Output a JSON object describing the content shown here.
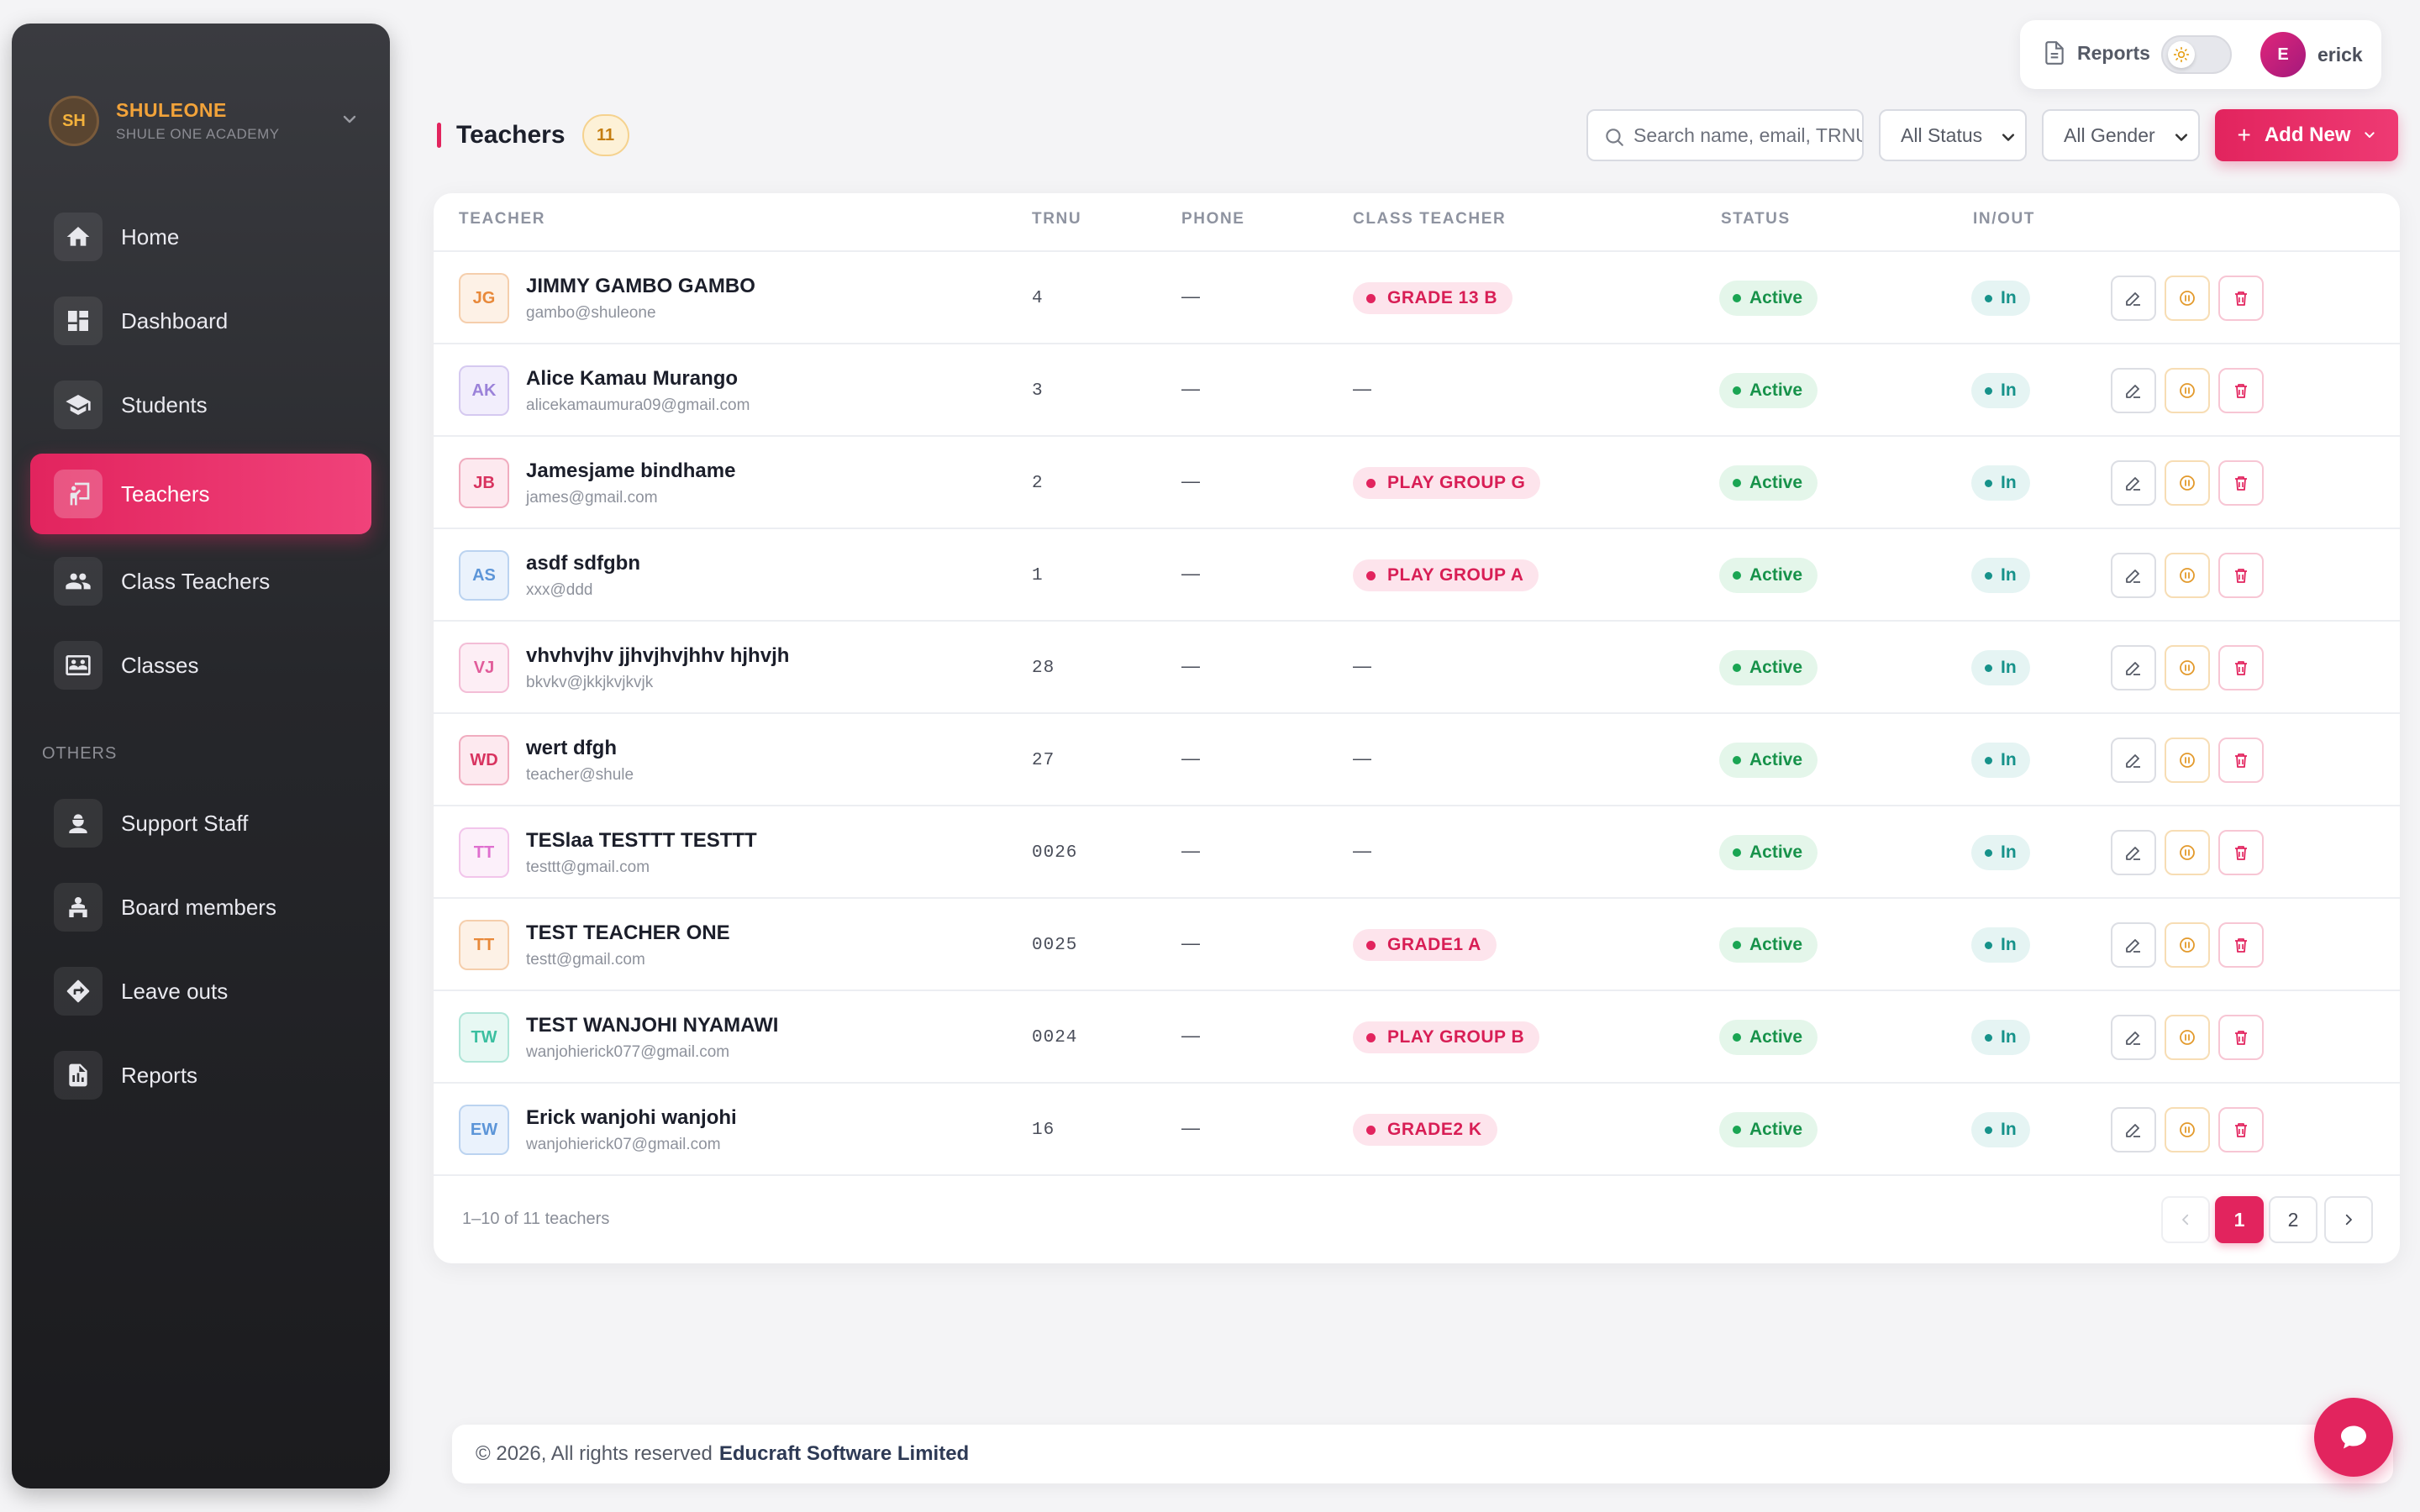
{
  "brand": {
    "initials": "SH",
    "name": "SHULEONE",
    "subtitle": "SHULE ONE ACADEMY"
  },
  "sidebar": {
    "items": [
      {
        "label": "Home",
        "icon": "home-icon"
      },
      {
        "label": "Dashboard",
        "icon": "dashboard-icon"
      },
      {
        "label": "Students",
        "icon": "graduation-cap-icon"
      },
      {
        "label": "Teachers",
        "icon": "teacher-board-icon",
        "active": true
      },
      {
        "label": "Class Teachers",
        "icon": "people-icon"
      },
      {
        "label": "Classes",
        "icon": "classroom-icon"
      }
    ],
    "section_label": "OTHERS",
    "others": [
      {
        "label": "Support Staff",
        "icon": "staff-icon"
      },
      {
        "label": "Board members",
        "icon": "board-member-icon"
      },
      {
        "label": "Leave outs",
        "icon": "directions-icon"
      },
      {
        "label": "Reports",
        "icon": "report-document-icon"
      }
    ]
  },
  "topbar": {
    "reports_label": "Reports",
    "theme": "light",
    "user_initial": "E",
    "user_name": "erick"
  },
  "page": {
    "title": "Teachers",
    "count": "11",
    "search_placeholder": "Search name, email, TRNU",
    "status_filter": "All Status",
    "gender_filter": "All Gender",
    "add_button": "Add New"
  },
  "table": {
    "headers": [
      "TEACHER",
      "TRNU",
      "PHONE",
      "CLASS TEACHER",
      "STATUS",
      "IN/OUT"
    ],
    "rows": [
      {
        "initials": "JG",
        "name": "JIMMY GAMBO GAMBO",
        "email": "gambo@shuleone",
        "trnu": "4",
        "phone": "—",
        "class": "GRADE 13 B",
        "status": "Active",
        "inout": "In",
        "color": "#e8893a",
        "bg": "#fdf1e6"
      },
      {
        "initials": "AK",
        "name": "Alice Kamau Murango",
        "email": "alicekamaumura09@gmail.com",
        "trnu": "3",
        "phone": "—",
        "class": "—",
        "status": "Active",
        "inout": "In",
        "color": "#9b82d9",
        "bg": "#f2eefc"
      },
      {
        "initials": "JB",
        "name": "Jamesjame bindhame",
        "email": "james@gmail.com",
        "trnu": "2",
        "phone": "—",
        "class": "PLAY GROUP G",
        "status": "Active",
        "inout": "In",
        "color": "#d8335f",
        "bg": "#fde9ef"
      },
      {
        "initials": "AS",
        "name": "asdf sdfgbn",
        "email": "xxx@ddd",
        "trnu": "1",
        "phone": "—",
        "class": "PLAY GROUP A",
        "status": "Active",
        "inout": "In",
        "color": "#5c95d8",
        "bg": "#eaf2fc"
      },
      {
        "initials": "VJ",
        "name": "vhvhvjhv jjhvjhvjhhv hjhvjh",
        "email": "bkvkv@jkkjkvjkvjk",
        "trnu": "28",
        "phone": "—",
        "class": "—",
        "status": "Active",
        "inout": "In",
        "color": "#e15c9a",
        "bg": "#fdeef5"
      },
      {
        "initials": "WD",
        "name": "wert dfgh",
        "email": "teacher@shule",
        "trnu": "27",
        "phone": "—",
        "class": "—",
        "status": "Active",
        "inout": "In",
        "color": "#d8335f",
        "bg": "#fde9ef"
      },
      {
        "initials": "TT",
        "name": "TESlaa TESTTT TESTTT",
        "email": "testtt@gmail.com",
        "trnu": "0026",
        "phone": "—",
        "class": "—",
        "status": "Active",
        "inout": "In",
        "color": "#df6fcf",
        "bg": "#fcf0fa"
      },
      {
        "initials": "TT",
        "name": "TEST TEACHER ONE",
        "email": "testt@gmail.com",
        "trnu": "0025",
        "phone": "—",
        "class": "GRADE1 A",
        "status": "Active",
        "inout": "In",
        "color": "#e8893a",
        "bg": "#fdf1e6"
      },
      {
        "initials": "TW",
        "name": "TEST WANJOHI NYAMAWI",
        "email": "wanjohierick077@gmail.com",
        "trnu": "0024",
        "phone": "—",
        "class": "PLAY GROUP B",
        "status": "Active",
        "inout": "In",
        "color": "#3bbfa0",
        "bg": "#e7f8f3"
      },
      {
        "initials": "EW",
        "name": "Erick wanjohi wanjohi",
        "email": "wanjohierick07@gmail.com",
        "trnu": "16",
        "phone": "—",
        "class": "GRADE2 K",
        "status": "Active",
        "inout": "In",
        "color": "#5c95d8",
        "bg": "#eaf2fc"
      }
    ],
    "summary": "1–10 of 11 teachers",
    "pages": [
      "1",
      "2"
    ],
    "current_page": "1"
  },
  "footer": {
    "copyright": "© 2026, All rights reserved",
    "company": "Educraft Software Limited"
  },
  "colors": {
    "accent": "#e2245e",
    "active_status": "#17924a",
    "inout": "#16928a"
  }
}
